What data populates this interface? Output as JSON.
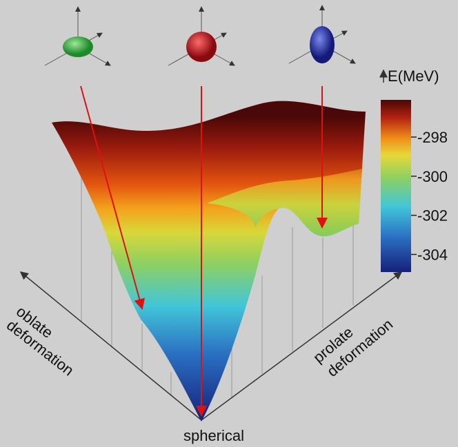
{
  "colorbar": {
    "label": "E(MeV)",
    "lim": [
      -304.9,
      -296.1
    ],
    "ticks": [
      -298,
      -300,
      -302,
      -304
    ]
  },
  "axis_labels": {
    "oblate": [
      "oblate",
      "deformation"
    ],
    "prolate": [
      "prolate",
      "deformation"
    ],
    "spherical": "spherical"
  }
}
